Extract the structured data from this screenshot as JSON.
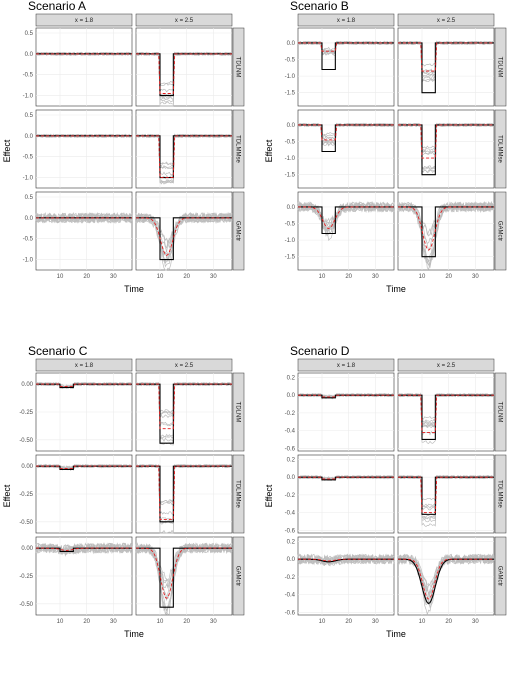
{
  "figure": {
    "scenarios": [
      {
        "title": "Scenario A",
        "yticks": [
          0.5,
          0.0,
          -0.5,
          -1.0
        ],
        "ylim": [
          -1.25,
          0.62
        ]
      },
      {
        "title": "Scenario B",
        "yticks": [
          0.0,
          -0.5,
          -1.0,
          -1.5
        ],
        "ylim": [
          -1.9,
          0.45
        ]
      },
      {
        "title": "Scenario C",
        "yticks": [
          0.0,
          -0.25,
          -0.5
        ],
        "ylim": [
          -0.6,
          0.1
        ]
      },
      {
        "title": "Scenario D",
        "yticks": [
          0.2,
          0.0,
          -0.2,
          -0.4,
          -0.6
        ],
        "ylim": [
          -0.63,
          0.25
        ]
      }
    ],
    "columns": [
      "x = 1.8",
      "x = 2.5"
    ],
    "rows": [
      "TDLNM",
      "TDLMMse",
      "GAMctr"
    ],
    "xlabel": "Time",
    "ylabel": "Effect",
    "xticks": [
      10,
      20,
      30
    ],
    "xlim": [
      1,
      37
    ]
  },
  "chart_data": {
    "type": "line",
    "description_of_series": [
      "Truth (black solid)",
      "Mean estimate (red dashed)",
      "Individual simulation fits (grey)"
    ],
    "truth_window_x25": [
      10,
      15
    ],
    "truth_window_x18_tdlnm_tdlmmse_scenarioA_C": [
      10,
      15
    ],
    "panels": [
      {
        "scenario": "Scenario A",
        "column": "x = 1.8",
        "row": "TDLNM",
        "truth_depth": 0.0,
        "mean_depth": 0.0
      },
      {
        "scenario": "Scenario A",
        "column": "x = 2.5",
        "row": "TDLNM",
        "truth_depth": -1.0,
        "mean_depth": -0.95
      },
      {
        "scenario": "Scenario A",
        "column": "x = 1.8",
        "row": "TDLMMse",
        "truth_depth": 0.0,
        "mean_depth": 0.0
      },
      {
        "scenario": "Scenario A",
        "column": "x = 2.5",
        "row": "TDLMMse",
        "truth_depth": -1.0,
        "mean_depth": -1.0
      },
      {
        "scenario": "Scenario A",
        "column": "x = 1.8",
        "row": "GAMctr",
        "truth_depth": 0.0,
        "mean_depth": 0.0
      },
      {
        "scenario": "Scenario A",
        "column": "x = 2.5",
        "row": "GAMctr",
        "truth_depth": -1.0,
        "mean_depth": -0.9
      },
      {
        "scenario": "Scenario B",
        "column": "x = 1.8",
        "row": "TDLNM",
        "truth_depth": -0.8,
        "mean_depth": -0.25
      },
      {
        "scenario": "Scenario B",
        "column": "x = 2.5",
        "row": "TDLNM",
        "truth_depth": -1.5,
        "mean_depth": -0.85
      },
      {
        "scenario": "Scenario B",
        "column": "x = 1.8",
        "row": "TDLMMse",
        "truth_depth": -0.8,
        "mean_depth": -0.45
      },
      {
        "scenario": "Scenario B",
        "column": "x = 2.5",
        "row": "TDLMMse",
        "truth_depth": -1.5,
        "mean_depth": -1.0
      },
      {
        "scenario": "Scenario B",
        "column": "x = 1.8",
        "row": "GAMctr",
        "truth_depth": -0.8,
        "mean_depth": -0.65
      },
      {
        "scenario": "Scenario B",
        "column": "x = 2.5",
        "row": "GAMctr",
        "truth_depth": -1.5,
        "mean_depth": -1.3
      },
      {
        "scenario": "Scenario C",
        "column": "x = 1.8",
        "row": "TDLNM",
        "truth_depth": -0.03,
        "mean_depth": -0.02
      },
      {
        "scenario": "Scenario C",
        "column": "x = 2.5",
        "row": "TDLNM",
        "truth_depth": -0.53,
        "mean_depth": -0.4
      },
      {
        "scenario": "Scenario C",
        "column": "x = 1.8",
        "row": "TDLMMse",
        "truth_depth": -0.03,
        "mean_depth": -0.02
      },
      {
        "scenario": "Scenario C",
        "column": "x = 2.5",
        "row": "TDLMMse",
        "truth_depth": -0.5,
        "mean_depth": -0.48
      },
      {
        "scenario": "Scenario C",
        "column": "x = 1.8",
        "row": "GAMctr",
        "truth_depth": -0.03,
        "mean_depth": -0.02
      },
      {
        "scenario": "Scenario C",
        "column": "x = 2.5",
        "row": "GAMctr",
        "truth_depth": -0.53,
        "mean_depth": -0.45
      },
      {
        "scenario": "Scenario D",
        "column": "x = 1.8",
        "row": "TDLNM",
        "truth_depth": -0.03,
        "mean_depth": -0.02
      },
      {
        "scenario": "Scenario D",
        "column": "x = 2.5",
        "row": "TDLNM",
        "truth_depth": -0.5,
        "mean_depth": -0.42
      },
      {
        "scenario": "Scenario D",
        "column": "x = 1.8",
        "row": "TDLMMse",
        "truth_depth": -0.03,
        "mean_depth": -0.02
      },
      {
        "scenario": "Scenario D",
        "column": "x = 2.5",
        "row": "TDLMMse",
        "truth_depth": -0.42,
        "mean_depth": -0.4
      },
      {
        "scenario": "Scenario D",
        "column": "x = 1.8",
        "row": "GAMctr",
        "truth_depth": -0.03,
        "mean_depth": -0.02
      },
      {
        "scenario": "Scenario D",
        "column": "x = 2.5",
        "row": "GAMctr",
        "truth_depth": -0.5,
        "mean_depth": -0.45
      }
    ],
    "colors": {
      "truth": "#000000",
      "mean": "#e41a1c",
      "sims": "#bdbdbd",
      "strip": "#d9d9d9",
      "grid": "#ebebeb"
    }
  }
}
